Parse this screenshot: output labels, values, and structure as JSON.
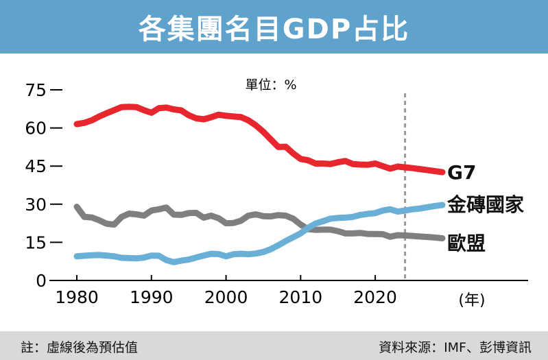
{
  "header": {
    "title": "各集團名目GDP占比"
  },
  "footer": {
    "note": "註：虛線後為預估值",
    "source": "資料來源：IMF、彭博資訊"
  },
  "colors": {
    "title_bg": "#5fa3cc",
    "footer_bg": "#d9d9d9",
    "g7": "#e8262d",
    "brics": "#6aafd6",
    "eu": "#7f7f7f",
    "forecast_line": "#999999"
  },
  "chart_data": {
    "type": "line",
    "unit_label": "單位：%",
    "year_suffix": "(年)",
    "xlim": [
      1980,
      2029
    ],
    "ylim": [
      0,
      75
    ],
    "yticks": [
      0,
      15,
      30,
      45,
      60,
      75
    ],
    "xticks": [
      1980,
      1990,
      2000,
      2010,
      2020
    ],
    "forecast_start": 2024,
    "x": [
      1980,
      1981,
      1982,
      1983,
      1984,
      1985,
      1986,
      1987,
      1988,
      1989,
      1990,
      1991,
      1992,
      1993,
      1994,
      1995,
      1996,
      1997,
      1998,
      1999,
      2000,
      2001,
      2002,
      2003,
      2004,
      2005,
      2006,
      2007,
      2008,
      2009,
      2010,
      2011,
      2012,
      2013,
      2014,
      2015,
      2016,
      2017,
      2018,
      2019,
      2020,
      2021,
      2022,
      2023,
      2024,
      2025,
      2026,
      2027,
      2028,
      2029
    ],
    "series": [
      {
        "name": "G7",
        "values": [
          61.5,
          62,
          63,
          64.5,
          65.8,
          67,
          68.2,
          68.3,
          68.2,
          67,
          66,
          67.8,
          68,
          67.3,
          66.9,
          65,
          63.8,
          63.4,
          64.2,
          65.2,
          64.8,
          64.5,
          64.3,
          63,
          61,
          58.5,
          55.5,
          52.5,
          52.6,
          50,
          47.8,
          47.3,
          46,
          46,
          45.8,
          46.5,
          47,
          45.8,
          45.6,
          45.5,
          46,
          45,
          44,
          44.8,
          44.5,
          44.2,
          43.8,
          43.4,
          43,
          42.6
        ]
      },
      {
        "name": "金磚國家",
        "values": [
          9.5,
          9.7,
          9.9,
          10,
          9.8,
          9.5,
          8.9,
          8.8,
          8.7,
          9,
          9.8,
          9.7,
          8,
          7.2,
          7.8,
          8.2,
          9,
          9.8,
          10.5,
          10.4,
          9.5,
          10.3,
          10.5,
          10.3,
          10.6,
          11.2,
          12.3,
          13.8,
          15.5,
          17,
          18.5,
          20.7,
          22.4,
          23.3,
          24.3,
          24.6,
          24.7,
          25,
          25.8,
          26.2,
          26.5,
          27.5,
          28,
          27.1,
          27.5,
          28,
          28.3,
          28.8,
          29.3,
          29.7
        ]
      },
      {
        "name": "歐盟",
        "values": [
          29,
          25,
          24.8,
          23.7,
          22.3,
          22,
          25,
          26.3,
          26,
          25.5,
          27.5,
          28,
          28.7,
          25.9,
          25.8,
          26.5,
          26.6,
          24.7,
          25.5,
          24.5,
          22.5,
          22.6,
          23.5,
          25.5,
          26,
          25.3,
          25.2,
          25.7,
          25.5,
          24.3,
          22,
          20.2,
          19.9,
          20,
          20,
          19.4,
          18.5,
          18.5,
          18.7,
          18.3,
          18.3,
          18.2,
          17.2,
          17.8,
          17.7,
          17.5,
          17.3,
          17.1,
          16.9,
          16.6
        ]
      }
    ],
    "legend": "line-end labels"
  }
}
